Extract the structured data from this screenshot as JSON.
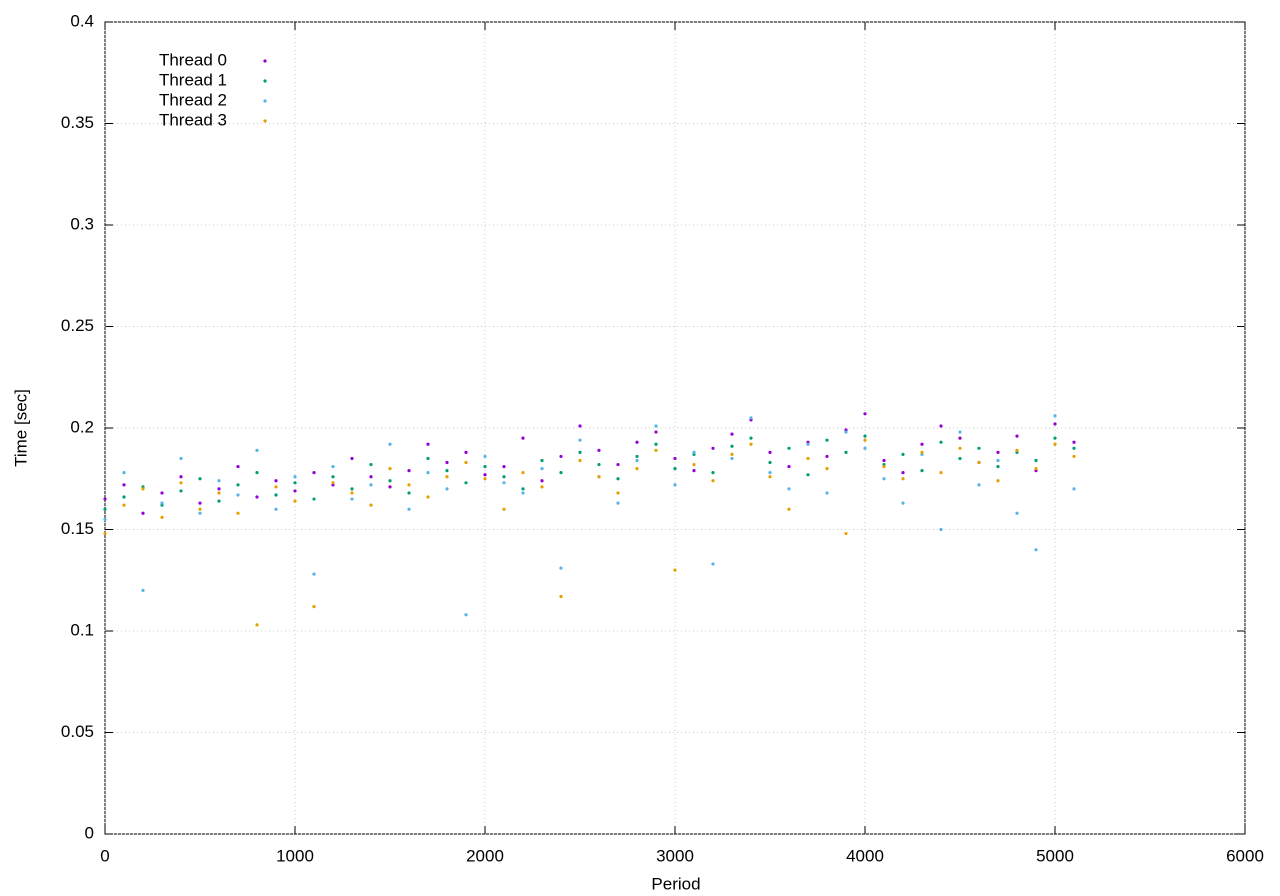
{
  "chart_data": {
    "type": "scatter",
    "xlabel": "Period",
    "ylabel": "Time [sec]",
    "xlim": [
      0,
      6000
    ],
    "xticks": [
      0,
      1000,
      2000,
      3000,
      4000,
      5000,
      6000
    ],
    "ylim": [
      0,
      0.4
    ],
    "yticks": [
      0,
      0.05,
      0.1,
      0.15,
      0.2,
      0.25,
      0.3,
      0.35,
      0.4
    ],
    "grid": true,
    "legend": "top-left",
    "x": [
      0,
      100,
      200,
      300,
      400,
      500,
      600,
      700,
      800,
      900,
      1000,
      1100,
      1200,
      1300,
      1400,
      1500,
      1600,
      1700,
      1800,
      1900,
      2000,
      2100,
      2200,
      2300,
      2400,
      2500,
      2600,
      2700,
      2800,
      2900,
      3000,
      3100,
      3200,
      3300,
      3400,
      3500,
      3600,
      3700,
      3800,
      3900,
      4000,
      4100,
      4200,
      4300,
      4400,
      4500,
      4600,
      4700,
      4800,
      4900,
      5000,
      5100
    ],
    "series": [
      {
        "name": "Thread 0",
        "color": "#9400d3",
        "values": [
          0.165,
          0.172,
          0.158,
          0.168,
          0.176,
          0.163,
          0.17,
          0.181,
          0.166,
          0.174,
          0.169,
          0.178,
          0.172,
          0.185,
          0.176,
          0.171,
          0.179,
          0.192,
          0.183,
          0.188,
          0.177,
          0.181,
          0.195,
          0.174,
          0.186,
          0.201,
          0.189,
          0.182,
          0.193,
          0.198,
          0.185,
          0.179,
          0.19,
          0.197,
          0.204,
          0.188,
          0.181,
          0.193,
          0.186,
          0.199,
          0.207,
          0.184,
          0.178,
          0.192,
          0.201,
          0.195,
          0.183,
          0.188,
          0.196,
          0.179,
          0.202,
          0.193
        ]
      },
      {
        "name": "Thread 1",
        "color": "#009e73",
        "values": [
          0.16,
          0.166,
          0.171,
          0.162,
          0.169,
          0.175,
          0.164,
          0.172,
          0.178,
          0.167,
          0.173,
          0.165,
          0.176,
          0.17,
          0.182,
          0.174,
          0.168,
          0.185,
          0.179,
          0.173,
          0.181,
          0.176,
          0.17,
          0.184,
          0.178,
          0.188,
          0.182,
          0.175,
          0.186,
          0.192,
          0.18,
          0.187,
          0.178,
          0.191,
          0.195,
          0.183,
          0.19,
          0.177,
          0.194,
          0.188,
          0.196,
          0.182,
          0.187,
          0.179,
          0.193,
          0.185,
          0.19,
          0.181,
          0.188,
          0.184,
          0.195,
          0.19
        ]
      },
      {
        "name": "Thread 2",
        "color": "#56b4e9",
        "values": [
          0.155,
          0.178,
          0.12,
          0.163,
          0.185,
          0.158,
          0.174,
          0.167,
          0.189,
          0.16,
          0.176,
          0.128,
          0.181,
          0.165,
          0.172,
          0.192,
          0.16,
          0.178,
          0.17,
          0.108,
          0.186,
          0.173,
          0.168,
          0.18,
          0.131,
          0.194,
          0.176,
          0.163,
          0.184,
          0.201,
          0.172,
          0.188,
          0.133,
          0.185,
          0.205,
          0.178,
          0.17,
          0.192,
          0.168,
          0.198,
          0.19,
          0.175,
          0.163,
          0.187,
          0.15,
          0.198,
          0.172,
          0.184,
          0.158,
          0.14,
          0.206,
          0.17
        ]
      },
      {
        "name": "Thread 3",
        "color": "#e69f00",
        "values": [
          0.148,
          0.162,
          0.17,
          0.156,
          0.173,
          0.16,
          0.168,
          0.158,
          0.103,
          0.171,
          0.164,
          0.112,
          0.173,
          0.168,
          0.162,
          0.18,
          0.172,
          0.166,
          0.176,
          0.183,
          0.175,
          0.16,
          0.178,
          0.171,
          0.117,
          0.184,
          0.176,
          0.168,
          0.18,
          0.189,
          0.13,
          0.182,
          0.174,
          0.187,
          0.192,
          0.176,
          0.16,
          0.185,
          0.18,
          0.148,
          0.194,
          0.181,
          0.175,
          0.188,
          0.178,
          0.19,
          0.183,
          0.174,
          0.189,
          0.18,
          0.192,
          0.186
        ]
      }
    ]
  }
}
